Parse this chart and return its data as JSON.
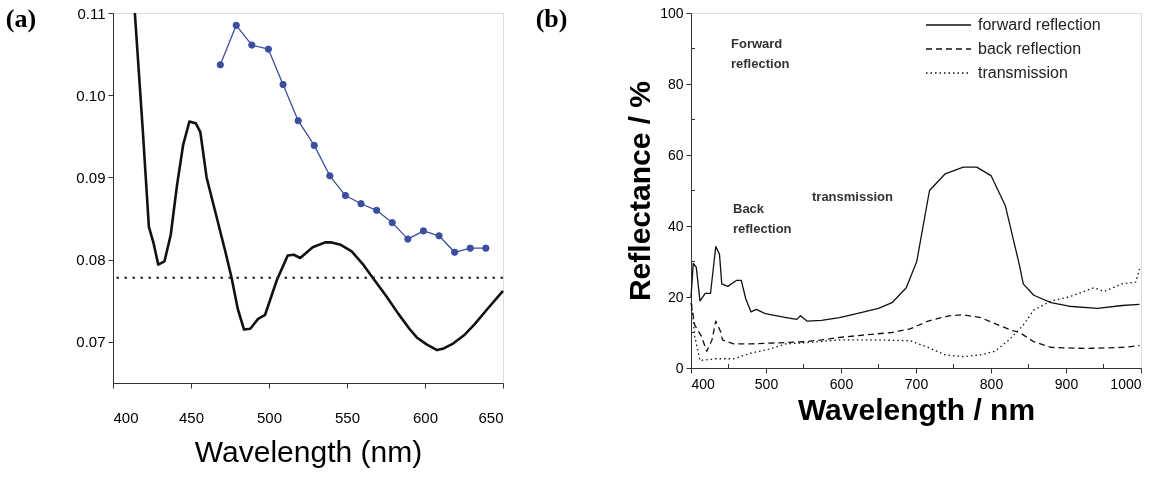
{
  "chart_data": [
    {
      "type": "line",
      "title": "(a)",
      "xlabel": "Wavelength (nm)",
      "xlim": [
        400,
        650
      ],
      "xticks": [
        400,
        450,
        500,
        550,
        600,
        650
      ],
      "ylim": [
        0.065,
        0.11
      ],
      "yticks": [
        0.07,
        0.08,
        0.09,
        {
          "value": 0.1,
          "label": "0.10"
        },
        0.11
      ],
      "grid": false,
      "series": [
        {
          "color": "#111111",
          "line_style": "solid",
          "marker": "none",
          "x": [
            414,
            419,
            423,
            426,
            429,
            433,
            437,
            441,
            445,
            449,
            453,
            456,
            460,
            466,
            472,
            476,
            480,
            484,
            488,
            493,
            497.5,
            505,
            512,
            516,
            520,
            528,
            536,
            540,
            546,
            553,
            560,
            566.5,
            575,
            582.6,
            590,
            595,
            601,
            607.7,
            612,
            618,
            625,
            632,
            640,
            650
          ],
          "values": [
            0.11,
            0.096,
            0.084,
            0.082,
            0.0794,
            0.0798,
            0.083,
            0.089,
            0.094,
            0.0968,
            0.0966,
            0.0955,
            0.09,
            0.0855,
            0.081,
            0.0778,
            0.074,
            0.0715,
            0.0716,
            0.0728,
            0.0733,
            0.0775,
            0.0805,
            0.0806,
            0.0802,
            0.0815,
            0.0821,
            0.0821,
            0.0818,
            0.081,
            0.0795,
            0.0778,
            0.0756,
            0.0735,
            0.0716,
            0.0705,
            0.0697,
            0.069,
            0.0692,
            0.0698,
            0.0708,
            0.0722,
            0.074,
            0.0762
          ]
        },
        {
          "color": "#3b4fa0",
          "line_style": "solid",
          "marker": "circle",
          "x": [
            468.8,
            479,
            489,
            499.6,
            509,
            518.7,
            529,
            539,
            549,
            559,
            569,
            579,
            589,
            599,
            609,
            619,
            629,
            639
          ],
          "values": [
            0.1037,
            0.1085,
            0.1061,
            0.1056,
            0.1013,
            0.0969,
            0.0939,
            0.0902,
            0.0878,
            0.0868,
            0.086,
            0.0845,
            0.0825,
            0.0835,
            0.0829,
            0.0809,
            0.0814,
            0.0814
          ]
        }
      ],
      "ref_lines": [
        {
          "axis": "y",
          "value": 0.0778,
          "line_style": "dotted",
          "color": "#222222"
        }
      ]
    },
    {
      "type": "line",
      "title": "(b)",
      "xlabel": "Wavelength / nm",
      "ylabel": "Reflectance / %",
      "xlim": [
        400,
        1000
      ],
      "xticks": [
        400,
        {
          "value": 450,
          "label": null
        },
        500,
        {
          "value": 550,
          "label": null
        },
        600,
        {
          "value": 650,
          "label": null
        },
        700,
        {
          "value": 750,
          "label": null
        },
        800,
        {
          "value": 850,
          "label": null
        },
        900,
        {
          "value": 950,
          "label": null
        },
        1000
      ],
      "ylim": [
        0,
        100
      ],
      "yticks": [
        0,
        {
          "value": 10,
          "label": null
        },
        20,
        {
          "value": 30,
          "label": null
        },
        40,
        {
          "value": 50,
          "label": null
        },
        60,
        {
          "value": 70,
          "label": null
        },
        80,
        {
          "value": 90,
          "label": null
        },
        100
      ],
      "grid": false,
      "legend": "top right",
      "annotations": [
        "Forward reflection",
        "Back reflection",
        "transmission"
      ],
      "series": [
        {
          "name": "forward reflection",
          "color": "#111111",
          "line_style": "solid",
          "x": [
            400,
            403,
            407,
            412,
            419,
            426,
            433,
            438,
            441,
            449,
            461,
            467,
            473,
            480,
            487,
            499,
            527,
            541,
            546,
            555,
            574,
            598,
            621,
            650,
            668,
            687,
            701,
            718,
            739,
            763,
            781,
            800,
            819,
            838,
            843,
            857,
            880,
            904,
            942,
            975,
            998
          ],
          "values": [
            20,
            29.5,
            28.4,
            18.9,
            21,
            21,
            34.2,
            32,
            23.7,
            23,
            24.7,
            24.7,
            19.5,
            15.8,
            16.5,
            15.3,
            14.2,
            13.7,
            14.7,
            13.2,
            13.4,
            14.2,
            15.3,
            16.8,
            18.4,
            22.6,
            30,
            50,
            54.7,
            56.6,
            56.6,
            54.2,
            45.8,
            28.9,
            23.7,
            20.5,
            18.4,
            17.4,
            16.8,
            17.6,
            17.9
          ]
        },
        {
          "name": "back reflection",
          "color": "#111111",
          "line_style": "dashed",
          "x": [
            400,
            405,
            414,
            421,
            428,
            433,
            440,
            442,
            457,
            480,
            518,
            551,
            574,
            598,
            631,
            668,
            692,
            716,
            744,
            763,
            786,
            810,
            829,
            838,
            857,
            880,
            927,
            975,
            998
          ],
          "values": [
            18.4,
            12.1,
            8.9,
            4.7,
            7.9,
            13.2,
            10,
            7.9,
            6.8,
            6.8,
            7.1,
            7.4,
            7.9,
            8.6,
            9.3,
            10,
            11,
            13.2,
            14.7,
            15,
            14.2,
            12.1,
            10.5,
            10,
            7.4,
            5.8,
            5.5,
            5.8,
            6.3
          ]
        },
        {
          "name": "transmission",
          "color": "#111111",
          "line_style": "dotted",
          "x": [
            401,
            405,
            412,
            433,
            457,
            480,
            504,
            527,
            551,
            598,
            645,
            692,
            716,
            739,
            763,
            786,
            805,
            824,
            843,
            857,
            880,
            904,
            937,
            951,
            975,
            993,
            998
          ],
          "values": [
            17.9,
            8.9,
            2.1,
            2.6,
            2.6,
            4.2,
            5.3,
            6.8,
            7.1,
            7.9,
            7.9,
            7.7,
            5.8,
            3.7,
            3.2,
            3.7,
            4.7,
            7.9,
            12.1,
            16.3,
            18.9,
            20,
            22.6,
            21.6,
            23.7,
            24.2,
            27.9
          ]
        }
      ]
    }
  ]
}
